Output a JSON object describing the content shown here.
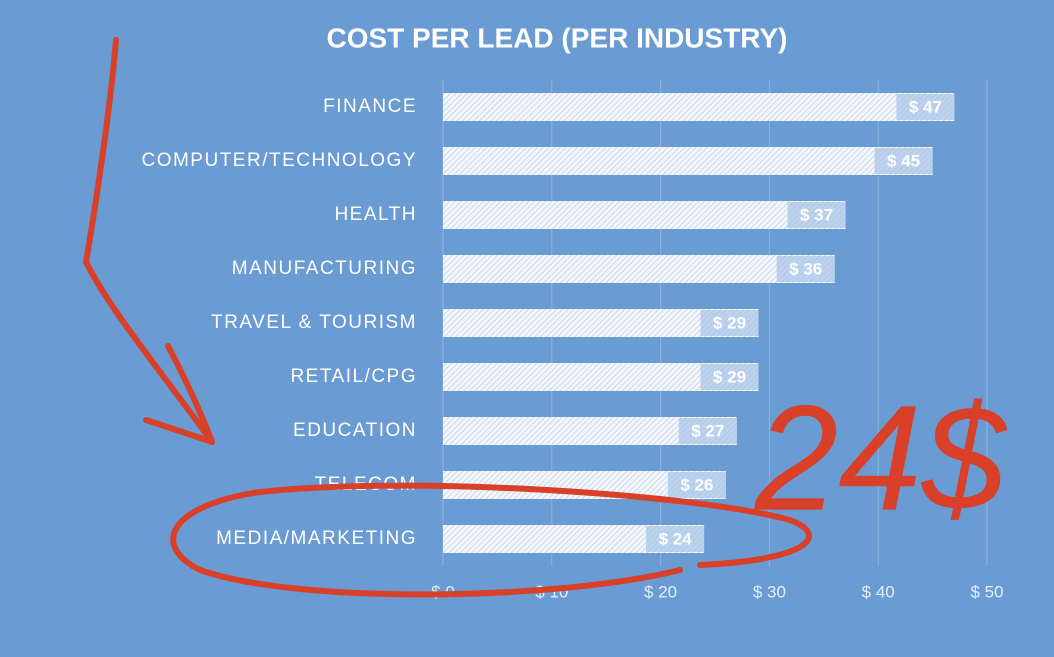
{
  "chart_data": {
    "type": "barh",
    "title": "COST PER LEAD (PER INDUSTRY)",
    "categories": [
      "FINANCE",
      "COMPUTER/TECHNOLOGY",
      "HEALTH",
      "MANUFACTURING",
      "TRAVEL & TOURISM",
      "RETAIL/CPG",
      "EDUCATION",
      "TELECOM",
      "MEDIA/MARKETING"
    ],
    "values": [
      47,
      45,
      37,
      36,
      29,
      29,
      27,
      26,
      24
    ],
    "value_labels": [
      "$ 47",
      "$ 45",
      "$ 37",
      "$ 36",
      "$ 29",
      "$ 29",
      "$ 27",
      "$ 26",
      "$ 24"
    ],
    "color": "#eef3fa",
    "xlim": [
      0,
      50
    ],
    "xticks": [
      {
        "value": 0,
        "label": "$ 0"
      },
      {
        "value": 10,
        "label": "$ 10"
      },
      {
        "value": 20,
        "label": "$ 20"
      },
      {
        "value": 30,
        "label": "$ 30"
      },
      {
        "value": 40,
        "label": "$ 40"
      },
      {
        "value": 50,
        "label": "$ 50"
      }
    ],
    "grid": true,
    "annotation": "24$"
  }
}
